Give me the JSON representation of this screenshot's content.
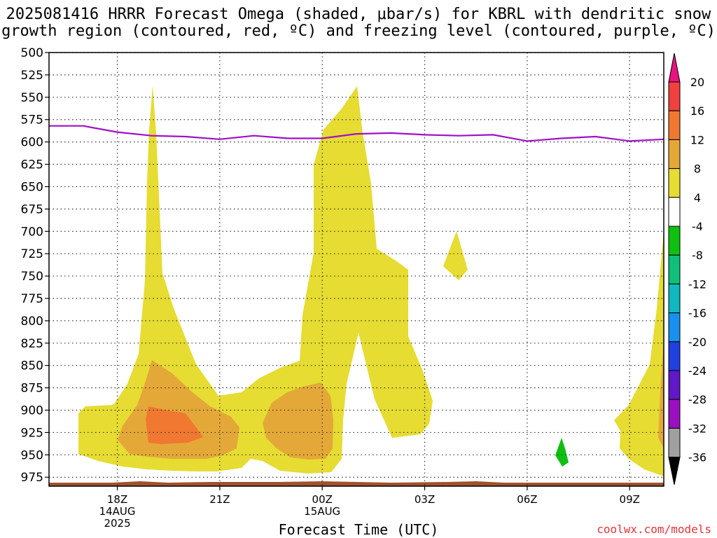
{
  "title": {
    "line1": "2025081416 HRRR Forecast Omega (shaded, μbar/s) for KBRL with dendritic snow",
    "line2": "growth region (contoured, red, ºC) and freezing level (contoured, purple, ºC)"
  },
  "x_axis_label": "Forecast Time (UTC)",
  "credit": "coolwx.com/models",
  "chart_data": {
    "type": "heatmap",
    "y_axis": {
      "ticks": [
        500,
        525,
        550,
        575,
        600,
        625,
        650,
        675,
        700,
        725,
        750,
        775,
        800,
        825,
        850,
        875,
        900,
        925,
        950,
        975
      ],
      "range": [
        500,
        985
      ],
      "grid": true
    },
    "x_axis": {
      "range_hours": [
        -2,
        16
      ],
      "ticks": [
        {
          "hour": 0,
          "label": "18Z",
          "sub1": "14AUG",
          "sub2": "2025"
        },
        {
          "hour": 3,
          "label": "21Z",
          "sub1": "",
          "sub2": ""
        },
        {
          "hour": 6,
          "label": "00Z",
          "sub1": "15AUG",
          "sub2": ""
        },
        {
          "hour": 9,
          "label": "03Z",
          "sub1": "",
          "sub2": ""
        },
        {
          "hour": 12,
          "label": "06Z",
          "sub1": "",
          "sub2": ""
        },
        {
          "hour": 15,
          "label": "09Z",
          "sub1": "",
          "sub2": ""
        }
      ],
      "grid": true
    },
    "freezing_level": {
      "color": "#a010c8",
      "x": [
        -2,
        -1,
        0,
        1,
        2,
        3,
        4,
        5,
        6,
        7,
        8,
        9,
        10,
        11,
        12,
        13,
        14,
        15,
        16
      ],
      "y": [
        582,
        582,
        589,
        593,
        594,
        597,
        593,
        596,
        596,
        591,
        590,
        592,
        593,
        592,
        599,
        596,
        594,
        599,
        597
      ]
    },
    "colorbar": {
      "levels": [
        "20",
        "16",
        "12",
        "8",
        "4",
        "-4",
        "-8",
        "-12",
        "-16",
        "-20",
        "-24",
        "-28",
        "-32",
        "-36"
      ],
      "colors": [
        "#e8137e",
        "#f04040",
        "#f07830",
        "#e4a838",
        "#e6dc32",
        "#ffffff",
        "#10c010",
        "#10c078",
        "#10b8c0",
        "#1890f0",
        "#2040e0",
        "#6018c8",
        "#9a10c0",
        "#a0a0a0",
        "#000000"
      ]
    },
    "omega_colors": {
      "4": "#e6dc32",
      "8": "#e4a838",
      "12": "#f07830",
      "-8": "#10c010",
      "surface": "#a0522d"
    }
  }
}
